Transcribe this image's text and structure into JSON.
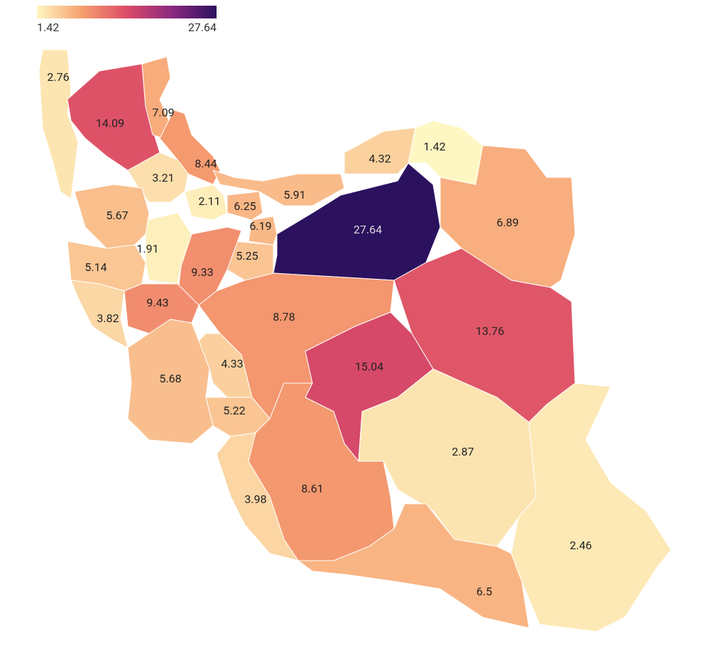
{
  "chart_data": {
    "type": "choropleth",
    "legend": {
      "min": 1.42,
      "max": 27.64
    },
    "colorscale": [
      "#fef7c3",
      "#f7a070",
      "#dc4c67",
      "#8c2981",
      "#2c115f"
    ],
    "values": [
      2.76,
      14.09,
      7.09,
      8.44,
      3.21,
      2.11,
      6.25,
      5.91,
      4.32,
      1.42,
      27.64,
      6.89,
      6.19,
      5.25,
      9.33,
      1.91,
      5.67,
      5.14,
      3.82,
      9.43,
      8.78,
      13.76,
      15.04,
      5.68,
      4.33,
      5.22,
      2.87,
      2.46,
      3.98,
      8.61,
      6.5
    ]
  }
}
